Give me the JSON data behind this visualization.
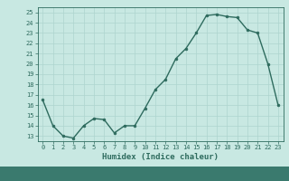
{
  "x": [
    0,
    1,
    2,
    3,
    4,
    5,
    6,
    7,
    8,
    9,
    10,
    11,
    12,
    13,
    14,
    15,
    16,
    17,
    18,
    19,
    20,
    21,
    22,
    23
  ],
  "y": [
    16.5,
    14,
    13,
    12.8,
    14,
    14.7,
    14.6,
    13.3,
    14,
    14,
    15.7,
    17.5,
    18.5,
    20.5,
    21.5,
    23,
    24.7,
    24.8,
    24.6,
    24.5,
    23.3,
    23,
    20,
    16
  ],
  "xlabel": "Humidex (Indice chaleur)",
  "ylim_min": 12.5,
  "ylim_max": 25.5,
  "yticks": [
    13,
    14,
    15,
    16,
    17,
    18,
    19,
    20,
    21,
    22,
    23,
    24,
    25
  ],
  "xticks": [
    0,
    1,
    2,
    3,
    4,
    5,
    6,
    7,
    8,
    9,
    10,
    11,
    12,
    13,
    14,
    15,
    16,
    17,
    18,
    19,
    20,
    21,
    22,
    23
  ],
  "line_color": "#2e6b5e",
  "marker_color": "#2e6b5e",
  "bg_color": "#c8e8e2",
  "grid_color": "#aed4ce",
  "xlabel_color": "#2e6b5e",
  "tick_color": "#2e6b5e",
  "spine_color": "#2e6b5e",
  "bottom_bar_color": "#3a7a6e"
}
